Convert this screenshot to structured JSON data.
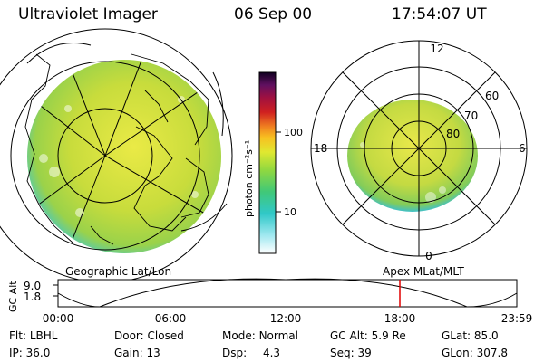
{
  "header": {
    "title": "Ultraviolet Imager",
    "date": "06 Sep 00",
    "time": "17:54:07 UT"
  },
  "colorbar": {
    "label": "photon cm⁻²s⁻¹",
    "ticks": [
      {
        "label": "100",
        "value": 100
      },
      {
        "label": "10",
        "value": 10
      }
    ]
  },
  "left_panel": {
    "label": "Geographic Lat/Lon"
  },
  "right_panel": {
    "label": "Apex  MLat/MLT",
    "mlt_labels": {
      "top": "12",
      "left": "18",
      "right": "6",
      "bottom": "0"
    },
    "lat_labels": [
      "60",
      "70",
      "80"
    ]
  },
  "timeline": {
    "ylabel": "GC Alt",
    "y_ticks": [
      "9.0",
      "1.8"
    ],
    "x_ticks": [
      "00:00",
      "06:00",
      "12:00",
      "18:00",
      "23:59"
    ],
    "marker_time": "17:54"
  },
  "status": {
    "row1": [
      {
        "key": "Flt:",
        "value": "LBHL"
      },
      {
        "key": "Door:",
        "value": "Closed"
      },
      {
        "key": "Mode:",
        "value": "Normal"
      },
      {
        "key": "GC Alt:",
        "value": "5.9 Re"
      },
      {
        "key": "GLat:",
        "value": "85.0"
      }
    ],
    "row2": [
      {
        "key": "IP:",
        "value": "36.0"
      },
      {
        "key": "Gain:",
        "value": "13"
      },
      {
        "key": "Dsp:",
        "value": "4.3"
      },
      {
        "key": "Seq:",
        "value": "39"
      },
      {
        "key": "GLon:",
        "value": "307.8"
      }
    ]
  },
  "colors": {
    "aurora_main": "#c8dc3c",
    "aurora_bright": "#e6e63c",
    "aurora_edge": "#3cc8c8",
    "marker": "#e00000"
  }
}
